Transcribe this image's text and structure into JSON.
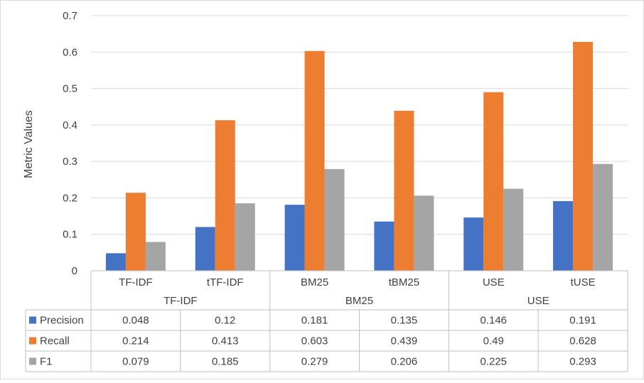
{
  "chart_data": {
    "type": "bar",
    "ylabel": "Metric Values",
    "ylim": [
      0,
      0.7
    ],
    "yticks": [
      "0",
      "0.1",
      "0.2",
      "0.3",
      "0.4",
      "0.5",
      "0.6",
      "0.7"
    ],
    "grid": true,
    "categories": [
      "TF-IDF",
      "tTF-IDF",
      "BM25",
      "tBM25",
      "USE",
      "tUSE"
    ],
    "groups": [
      {
        "label": "TF-IDF",
        "categories": [
          "TF-IDF",
          "tTF-IDF"
        ]
      },
      {
        "label": "BM25",
        "categories": [
          "BM25",
          "tBM25"
        ]
      },
      {
        "label": "USE",
        "categories": [
          "USE",
          "tUSE"
        ]
      }
    ],
    "series": [
      {
        "name": "Precision",
        "color": "#4472C4",
        "values": [
          0.048,
          0.12,
          0.181,
          0.135,
          0.146,
          0.191
        ],
        "labels": [
          "0.048",
          "0.12",
          "0.181",
          "0.135",
          "0.146",
          "0.191"
        ]
      },
      {
        "name": "Recall",
        "color": "#ED7D31",
        "values": [
          0.214,
          0.413,
          0.603,
          0.439,
          0.49,
          0.628
        ],
        "labels": [
          "0.214",
          "0.413",
          "0.603",
          "0.439",
          "0.49",
          "0.628"
        ]
      },
      {
        "name": "F1",
        "color": "#A5A5A5",
        "values": [
          0.079,
          0.185,
          0.279,
          0.206,
          0.225,
          0.293
        ],
        "labels": [
          "0.079",
          "0.185",
          "0.279",
          "0.206",
          "0.225",
          "0.293"
        ]
      }
    ]
  }
}
